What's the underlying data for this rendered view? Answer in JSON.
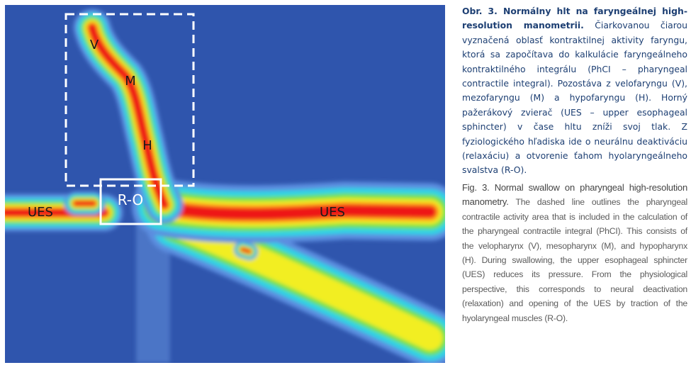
{
  "figure": {
    "labels": {
      "v": "V",
      "m": "M",
      "h": "H",
      "ro": "R-O",
      "ues_left": "UES",
      "ues_right": "UES"
    }
  },
  "caption_sk": {
    "title": "Obr. 3. Normálny hlt na faryngeálnej high-resolution manometrii.",
    "text": "Čiarkovanou čiarou vyznačená oblasť kontraktilnej aktivity faryngu, ktorá sa započítava do kalkulácie faryngeálneho kontraktilného integrálu (PhCI – pharyngeal contractile integral). Pozostáva z velofaryngu (V), mezofaryngu (M) a hypofaryngu (H). Horný pažerákový zvierač (UES – upper esophageal sphincter) v čase hltu zníži svoj tlak. Z fyziologického hľadiska ide o neurálnu deaktiváciu (relaxáciu) a otvorenie ťahom hyolaryngeálneho svalstva (R-O)."
  },
  "caption_en": {
    "title": "Fig. 3. Normal swallow on pharyngeal high-resolution manometry.",
    "text": "The dashed line outlines the pharyngeal contractile activity area that is included in the calculation of the pharyngeal contractile integral (PhCI). This consists of the velopharynx (V), mesopharynx (M), and hypopharynx (H). During swallowing, the upper esophageal sphincter (UES) reduces its pressure. From the physiological perspective, this corresponds to neural deactivation (relaxation) and opening of the UES by traction of the hyolaryngeal muscles (R-O)."
  }
}
